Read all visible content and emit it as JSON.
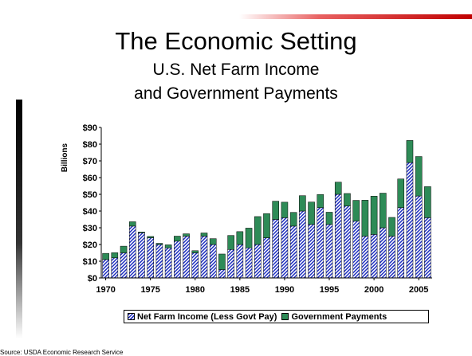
{
  "slide": {
    "title": "The Economic Setting",
    "subtitle_line1": "U.S. Net Farm Income",
    "subtitle_line2": "and Government Payments",
    "source": "Source: USDA Economic Research Service"
  },
  "colors": {
    "net_farm_income": "#2030c0",
    "government_payments": "#2e8b57",
    "accent": "#c00000"
  },
  "chart_data": {
    "type": "bar",
    "stacked": true,
    "ylabel": "Billions",
    "ylim": [
      0,
      90
    ],
    "yticks": [
      "$0",
      "$10",
      "$20",
      "$30",
      "$40",
      "$50",
      "$60",
      "$70",
      "$80",
      "$90"
    ],
    "xtick_labels": [
      "1970",
      "1975",
      "1980",
      "1985",
      "1990",
      "1995",
      "2000",
      "2005"
    ],
    "categories": [
      1970,
      1971,
      1972,
      1973,
      1974,
      1975,
      1976,
      1977,
      1978,
      1979,
      1980,
      1981,
      1982,
      1983,
      1984,
      1985,
      1986,
      1987,
      1988,
      1989,
      1990,
      1991,
      1992,
      1993,
      1994,
      1995,
      1996,
      1997,
      1998,
      1999,
      2000,
      2001,
      2002,
      2003,
      2004,
      2005,
      2006
    ],
    "series": [
      {
        "name": "Net Farm Income (Less Govt Pay)",
        "values": [
          11,
          12,
          15,
          31,
          27,
          24,
          20,
          18,
          22,
          25,
          15,
          25,
          20,
          5,
          17,
          20,
          18,
          20,
          24,
          35,
          36,
          31,
          40,
          32,
          42,
          32,
          50,
          43,
          34,
          25,
          26,
          30,
          25,
          42,
          69,
          49,
          36
        ]
      },
      {
        "name": "Government Payments",
        "values": [
          3.7,
          3.1,
          4,
          2.6,
          0.5,
          0.8,
          0.7,
          1.8,
          3,
          1.4,
          1.3,
          1.9,
          3.5,
          9.3,
          8.4,
          7.7,
          11.8,
          16.7,
          14.5,
          10.9,
          9.3,
          8.2,
          9.2,
          13.4,
          7.9,
          7.3,
          7.3,
          7.5,
          12.4,
          21.5,
          22.9,
          20.7,
          11.2,
          17.2,
          13.2,
          23.6,
          18.6
        ]
      }
    ],
    "legend_position": "bottom",
    "grid": false
  }
}
